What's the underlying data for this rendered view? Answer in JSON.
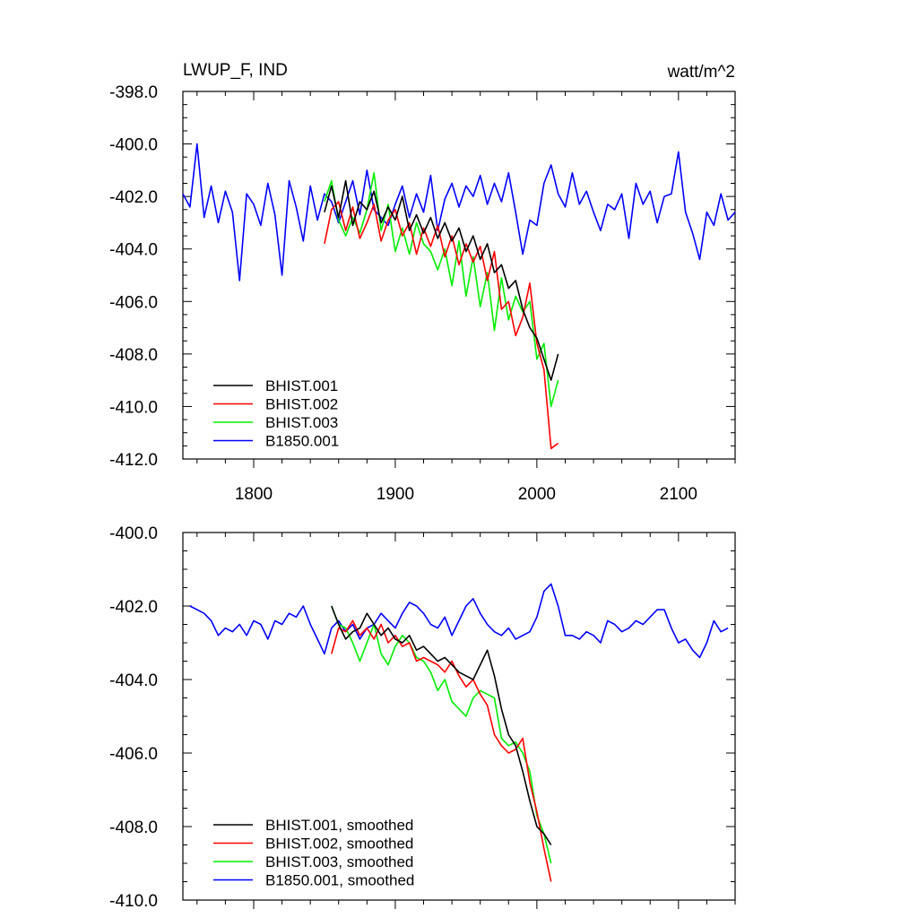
{
  "figure_title": "LWUP_F, IND",
  "units": "watt/m^2",
  "colors": {
    "BHIST.001": "#000000",
    "BHIST.002": "#ff0000",
    "BHIST.003": "#00ee00",
    "B1850.001": "#0000ff"
  },
  "chart_data": [
    {
      "type": "line",
      "title": "LWUP_F, IND",
      "units": "watt/m^2",
      "xlim": [
        1750,
        2140
      ],
      "ylim": [
        -412,
        -398
      ],
      "xticks": [
        1800,
        1900,
        2000,
        2100
      ],
      "xtick_labels": [
        "1800",
        "1900",
        "2000",
        "2100"
      ],
      "yticks": [
        -412,
        -410,
        -408,
        -406,
        -404,
        -402,
        -400,
        -398
      ],
      "ytick_labels": [
        "-412.0",
        "-410.0",
        "-408.0",
        "-406.0",
        "-404.0",
        "-402.0",
        "-400.0",
        "-398.0"
      ],
      "legend_position": "bottom-left",
      "series": [
        {
          "name": "BHIST.001",
          "color": "#000000",
          "x": [
            1850,
            1855,
            1860,
            1865,
            1870,
            1875,
            1880,
            1885,
            1890,
            1895,
            1900,
            1905,
            1910,
            1915,
            1920,
            1925,
            1930,
            1935,
            1940,
            1945,
            1950,
            1955,
            1960,
            1965,
            1970,
            1975,
            1980,
            1985,
            1990,
            1995,
            2000,
            2005,
            2010,
            2015
          ],
          "y": [
            -402.6,
            -401.6,
            -402.8,
            -401.4,
            -403.1,
            -402.2,
            -402.5,
            -401.8,
            -403.0,
            -402.4,
            -402.9,
            -402.0,
            -403.3,
            -402.7,
            -403.4,
            -402.8,
            -403.6,
            -403.0,
            -403.7,
            -403.2,
            -404.1,
            -403.5,
            -404.4,
            -403.8,
            -404.9,
            -404.6,
            -405.5,
            -405.2,
            -406.3,
            -407.0,
            -407.4,
            -408.2,
            -409.0,
            -408.0
          ]
        },
        {
          "name": "BHIST.002",
          "color": "#ff0000",
          "x": [
            1850,
            1855,
            1860,
            1865,
            1870,
            1875,
            1880,
            1885,
            1890,
            1895,
            1900,
            1905,
            1910,
            1915,
            1920,
            1925,
            1930,
            1935,
            1940,
            1945,
            1950,
            1955,
            1960,
            1965,
            1970,
            1975,
            1980,
            1985,
            1990,
            1995,
            2000,
            2005,
            2010,
            2015
          ],
          "y": [
            -403.8,
            -402.5,
            -402.2,
            -403.3,
            -402.4,
            -403.6,
            -403.0,
            -402.3,
            -403.7,
            -402.9,
            -402.5,
            -403.5,
            -403.0,
            -404.2,
            -403.2,
            -403.9,
            -403.1,
            -404.3,
            -403.5,
            -404.6,
            -403.8,
            -404.5,
            -403.9,
            -405.2,
            -404.1,
            -406.3,
            -406.0,
            -407.3,
            -406.6,
            -405.3,
            -407.6,
            -408.6,
            -411.6,
            -411.4
          ]
        },
        {
          "name": "BHIST.003",
          "color": "#00ee00",
          "x": [
            1850,
            1855,
            1860,
            1865,
            1870,
            1875,
            1880,
            1885,
            1890,
            1895,
            1900,
            1905,
            1910,
            1915,
            1920,
            1925,
            1930,
            1935,
            1940,
            1945,
            1950,
            1955,
            1960,
            1965,
            1970,
            1975,
            1980,
            1985,
            1990,
            1995,
            2000,
            2005,
            2010,
            2015
          ],
          "y": [
            -402.2,
            -401.4,
            -402.9,
            -403.5,
            -402.8,
            -403.4,
            -402.5,
            -401.1,
            -403.3,
            -402.3,
            -404.1,
            -403.2,
            -404.2,
            -403.0,
            -403.8,
            -404.1,
            -404.8,
            -404.0,
            -405.4,
            -403.7,
            -405.8,
            -404.3,
            -406.2,
            -404.9,
            -407.1,
            -405.1,
            -406.7,
            -405.8,
            -406.4,
            -406.0,
            -408.2,
            -407.6,
            -410.0,
            -409.0
          ]
        },
        {
          "name": "B1850.001",
          "color": "#0000ff",
          "x": [
            1750,
            1755,
            1760,
            1765,
            1770,
            1775,
            1780,
            1785,
            1790,
            1795,
            1800,
            1805,
            1810,
            1815,
            1820,
            1825,
            1830,
            1835,
            1840,
            1845,
            1850,
            1855,
            1860,
            1865,
            1870,
            1875,
            1880,
            1885,
            1890,
            1895,
            1900,
            1905,
            1910,
            1915,
            1920,
            1925,
            1930,
            1935,
            1940,
            1945,
            1950,
            1955,
            1960,
            1965,
            1970,
            1975,
            1980,
            1985,
            1990,
            1995,
            2000,
            2005,
            2010,
            2015,
            2020,
            2025,
            2030,
            2035,
            2040,
            2045,
            2050,
            2055,
            2060,
            2065,
            2070,
            2075,
            2080,
            2085,
            2090,
            2095,
            2100,
            2105,
            2110,
            2115,
            2120,
            2125,
            2130,
            2135,
            2140
          ],
          "y": [
            -401.9,
            -402.4,
            -400.0,
            -402.8,
            -401.6,
            -403.0,
            -401.8,
            -402.6,
            -405.2,
            -401.9,
            -402.3,
            -403.1,
            -401.5,
            -402.7,
            -405.0,
            -401.4,
            -402.4,
            -403.7,
            -401.6,
            -402.9,
            -401.9,
            -402.2,
            -403.0,
            -402.2,
            -401.4,
            -402.7,
            -401.0,
            -402.5,
            -402.8,
            -403.1,
            -402.3,
            -401.6,
            -402.8,
            -401.9,
            -402.6,
            -401.2,
            -403.3,
            -402.1,
            -401.5,
            -402.4,
            -401.6,
            -402.0,
            -401.2,
            -402.3,
            -401.5,
            -402.2,
            -401.1,
            -402.6,
            -404.2,
            -402.9,
            -403.1,
            -401.5,
            -400.8,
            -401.9,
            -402.4,
            -401.1,
            -402.3,
            -401.8,
            -402.6,
            -403.3,
            -402.3,
            -402.5,
            -401.9,
            -403.6,
            -401.5,
            -402.3,
            -401.8,
            -403.0,
            -402.0,
            -401.9,
            -400.3,
            -402.6,
            -403.4,
            -404.4,
            -402.6,
            -403.1,
            -401.9,
            -402.9,
            -402.6
          ]
        }
      ]
    },
    {
      "type": "line",
      "xlim": [
        1750,
        2140
      ],
      "ylim": [
        -410,
        -400
      ],
      "xticks": [
        1800,
        1900,
        2000,
        2100
      ],
      "yticks": [
        -410,
        -408,
        -406,
        -404,
        -402,
        -400
      ],
      "ytick_labels": [
        "-410.0",
        "-408.0",
        "-406.0",
        "-404.0",
        "-402.0",
        "-400.0"
      ],
      "legend_position": "bottom-left",
      "series": [
        {
          "name": "BHIST.001, smoothed",
          "color": "#000000",
          "x": [
            1855,
            1860,
            1865,
            1870,
            1875,
            1880,
            1885,
            1890,
            1895,
            1900,
            1905,
            1910,
            1915,
            1920,
            1925,
            1930,
            1935,
            1940,
            1945,
            1950,
            1955,
            1960,
            1965,
            1970,
            1975,
            1980,
            1985,
            1990,
            1995,
            2000,
            2005,
            2010
          ],
          "y": [
            -402.0,
            -402.5,
            -402.9,
            -402.7,
            -402.6,
            -402.2,
            -402.5,
            -402.8,
            -402.6,
            -402.9,
            -403.0,
            -402.8,
            -403.2,
            -403.1,
            -403.3,
            -403.5,
            -403.4,
            -403.6,
            -403.8,
            -403.9,
            -404.0,
            -403.6,
            -403.2,
            -403.9,
            -404.8,
            -405.5,
            -405.8,
            -406.5,
            -407.3,
            -408.0,
            -408.2,
            -408.5
          ]
        },
        {
          "name": "BHIST.002, smoothed",
          "color": "#ff0000",
          "x": [
            1855,
            1860,
            1865,
            1870,
            1875,
            1880,
            1885,
            1890,
            1895,
            1900,
            1905,
            1910,
            1915,
            1920,
            1925,
            1930,
            1935,
            1940,
            1945,
            1950,
            1955,
            1960,
            1965,
            1970,
            1975,
            1980,
            1985,
            1990,
            1995,
            2000,
            2005,
            2010
          ],
          "y": [
            -403.3,
            -402.6,
            -402.7,
            -402.4,
            -402.8,
            -402.6,
            -402.9,
            -402.5,
            -403.0,
            -402.8,
            -403.1,
            -403.0,
            -403.5,
            -403.4,
            -403.5,
            -403.6,
            -403.8,
            -403.5,
            -403.9,
            -404.2,
            -404.0,
            -404.4,
            -404.7,
            -405.5,
            -405.8,
            -406.0,
            -405.9,
            -405.6,
            -406.8,
            -407.6,
            -408.6,
            -409.5
          ]
        },
        {
          "name": "BHIST.003, smoothed",
          "color": "#00ee00",
          "x": [
            1855,
            1860,
            1865,
            1870,
            1875,
            1880,
            1885,
            1890,
            1895,
            1900,
            1905,
            1910,
            1915,
            1920,
            1925,
            1930,
            1935,
            1940,
            1945,
            1950,
            1955,
            1960,
            1965,
            1970,
            1975,
            1980,
            1985,
            1990,
            1995,
            2000,
            2005,
            2010
          ],
          "y": [
            -402.0,
            -402.5,
            -402.6,
            -403.0,
            -403.5,
            -403.0,
            -402.5,
            -403.3,
            -403.6,
            -403.1,
            -402.8,
            -403.0,
            -403.4,
            -403.5,
            -403.8,
            -404.3,
            -404.0,
            -404.6,
            -404.8,
            -405.0,
            -404.5,
            -404.3,
            -404.4,
            -404.5,
            -405.6,
            -405.8,
            -405.7,
            -406.0,
            -406.5,
            -407.7,
            -408.2,
            -409.0
          ]
        },
        {
          "name": "B1850.001, smoothed",
          "color": "#0000ff",
          "x": [
            1755,
            1760,
            1765,
            1770,
            1775,
            1780,
            1785,
            1790,
            1795,
            1800,
            1805,
            1810,
            1815,
            1820,
            1825,
            1830,
            1835,
            1840,
            1845,
            1850,
            1855,
            1860,
            1865,
            1870,
            1875,
            1880,
            1885,
            1890,
            1895,
            1900,
            1905,
            1910,
            1915,
            1920,
            1925,
            1930,
            1935,
            1940,
            1945,
            1950,
            1955,
            1960,
            1965,
            1970,
            1975,
            1980,
            1985,
            1990,
            1995,
            2000,
            2005,
            2010,
            2015,
            2020,
            2025,
            2030,
            2035,
            2040,
            2045,
            2050,
            2055,
            2060,
            2065,
            2070,
            2075,
            2080,
            2085,
            2090,
            2095,
            2100,
            2105,
            2110,
            2115,
            2120,
            2125,
            2130,
            2135
          ],
          "y": [
            -402.0,
            -402.1,
            -402.2,
            -402.4,
            -402.8,
            -402.6,
            -402.7,
            -402.5,
            -402.8,
            -402.4,
            -402.5,
            -402.9,
            -402.4,
            -402.5,
            -402.2,
            -402.3,
            -402.0,
            -402.5,
            -402.9,
            -403.3,
            -402.6,
            -402.4,
            -402.7,
            -402.5,
            -402.9,
            -402.6,
            -402.5,
            -402.2,
            -402.4,
            -402.6,
            -402.2,
            -401.9,
            -402.0,
            -402.2,
            -402.5,
            -402.6,
            -402.3,
            -402.8,
            -402.4,
            -402.0,
            -401.8,
            -402.2,
            -402.5,
            -402.7,
            -402.8,
            -402.6,
            -402.9,
            -402.8,
            -402.7,
            -402.3,
            -401.6,
            -401.4,
            -402.0,
            -402.8,
            -402.8,
            -402.9,
            -402.7,
            -402.8,
            -403.0,
            -402.4,
            -402.5,
            -402.7,
            -402.6,
            -402.4,
            -402.5,
            -402.3,
            -402.1,
            -402.1,
            -402.6,
            -403.0,
            -402.9,
            -403.2,
            -403.4,
            -403.0,
            -402.4,
            -402.7,
            -402.6
          ]
        }
      ]
    }
  ]
}
